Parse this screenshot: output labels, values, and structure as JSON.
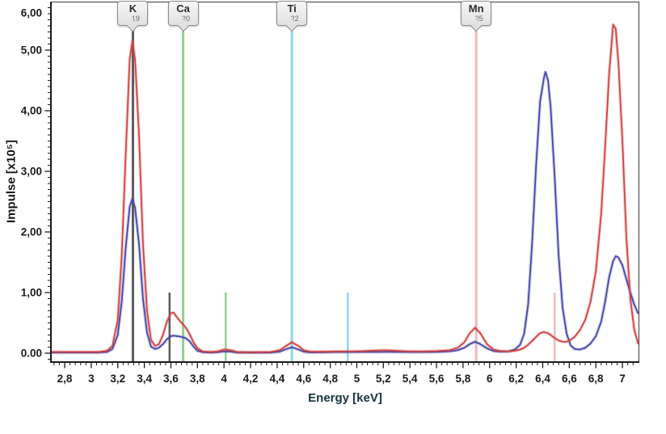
{
  "chart_data": {
    "type": "line",
    "title": "",
    "xlabel": "Energy [keV]",
    "ylabel": "Impulse [x10⁵]",
    "grid": false,
    "legend": "none",
    "x_visible_range": [
      2.7,
      7.12
    ],
    "y_visible_range": [
      0,
      5.8
    ],
    "x_tick_values": [
      2.8,
      3.0,
      3.2,
      3.4,
      3.6,
      3.8,
      4.0,
      4.2,
      4.4,
      4.6,
      4.8,
      5.0,
      5.2,
      5.4,
      5.6,
      5.8,
      6.0,
      6.2,
      6.4,
      6.6,
      6.8,
      7.0
    ],
    "x_tick_labels": [
      "2,8",
      "3",
      "3,2",
      "3,4",
      "3,6",
      "3,8",
      "4",
      "4,2",
      "4,4",
      "4,6",
      "4,8",
      "5",
      "5,2",
      "5,4",
      "5,6",
      "5,8",
      "6",
      "6,2",
      "6,4",
      "6,6",
      "6,8",
      "7"
    ],
    "x_minor_tick_step": 0.04,
    "y_tick_values": [
      0,
      1,
      2,
      3,
      4,
      5,
      6
    ],
    "y_tick_labels": [
      "0.00",
      "1,00",
      "2,00",
      "3,00",
      "4,00",
      "5,00",
      "6,00"
    ],
    "y_minor_tick_step": 0.1,
    "series_names": [
      "red spectrum",
      "blue spectrum"
    ],
    "points_format": [
      "energy_keV",
      "red_value_x1e5",
      "blue_value_x1e5"
    ],
    "points": [
      [
        2.7,
        0.02,
        0.01
      ],
      [
        2.9,
        0.02,
        0.01
      ],
      [
        3.05,
        0.02,
        0.01
      ],
      [
        3.12,
        0.04,
        0.02
      ],
      [
        3.16,
        0.12,
        0.07
      ],
      [
        3.2,
        0.55,
        0.3
      ],
      [
        3.23,
        1.6,
        0.85
      ],
      [
        3.26,
        3.3,
        1.75
      ],
      [
        3.29,
        4.85,
        2.42
      ],
      [
        3.31,
        5.15,
        2.55
      ],
      [
        3.33,
        4.85,
        2.4
      ],
      [
        3.36,
        3.6,
        1.8
      ],
      [
        3.39,
        1.8,
        0.9
      ],
      [
        3.42,
        0.7,
        0.34
      ],
      [
        3.45,
        0.22,
        0.11
      ],
      [
        3.48,
        0.12,
        0.07
      ],
      [
        3.51,
        0.15,
        0.09
      ],
      [
        3.54,
        0.3,
        0.15
      ],
      [
        3.57,
        0.52,
        0.23
      ],
      [
        3.6,
        0.66,
        0.28
      ],
      [
        3.62,
        0.67,
        0.29
      ],
      [
        3.65,
        0.58,
        0.28
      ],
      [
        3.68,
        0.5,
        0.27
      ],
      [
        3.71,
        0.43,
        0.25
      ],
      [
        3.74,
        0.32,
        0.2
      ],
      [
        3.77,
        0.18,
        0.11
      ],
      [
        3.8,
        0.08,
        0.04
      ],
      [
        3.84,
        0.03,
        0.015
      ],
      [
        3.9,
        0.02,
        0.01
      ],
      [
        3.95,
        0.03,
        0.015
      ],
      [
        4.0,
        0.06,
        0.03
      ],
      [
        4.05,
        0.05,
        0.025
      ],
      [
        4.1,
        0.02,
        0.01
      ],
      [
        4.2,
        0.015,
        0.008
      ],
      [
        4.35,
        0.02,
        0.01
      ],
      [
        4.42,
        0.05,
        0.025
      ],
      [
        4.46,
        0.11,
        0.06
      ],
      [
        4.51,
        0.18,
        0.1
      ],
      [
        4.56,
        0.12,
        0.06
      ],
      [
        4.6,
        0.05,
        0.025
      ],
      [
        4.65,
        0.025,
        0.012
      ],
      [
        4.75,
        0.025,
        0.015
      ],
      [
        4.85,
        0.03,
        0.018
      ],
      [
        4.95,
        0.03,
        0.018
      ],
      [
        5.05,
        0.035,
        0.02
      ],
      [
        5.15,
        0.045,
        0.02
      ],
      [
        5.22,
        0.05,
        0.022
      ],
      [
        5.3,
        0.04,
        0.02
      ],
      [
        5.4,
        0.03,
        0.018
      ],
      [
        5.5,
        0.03,
        0.018
      ],
      [
        5.6,
        0.035,
        0.02
      ],
      [
        5.7,
        0.05,
        0.03
      ],
      [
        5.76,
        0.09,
        0.05
      ],
      [
        5.81,
        0.18,
        0.09
      ],
      [
        5.85,
        0.33,
        0.15
      ],
      [
        5.89,
        0.42,
        0.19
      ],
      [
        5.93,
        0.33,
        0.15
      ],
      [
        5.98,
        0.15,
        0.08
      ],
      [
        6.03,
        0.06,
        0.035
      ],
      [
        6.08,
        0.035,
        0.025
      ],
      [
        6.14,
        0.03,
        0.03
      ],
      [
        6.19,
        0.04,
        0.06
      ],
      [
        6.23,
        0.06,
        0.14
      ],
      [
        6.26,
        0.09,
        0.32
      ],
      [
        6.29,
        0.14,
        0.8
      ],
      [
        6.32,
        0.2,
        1.8
      ],
      [
        6.35,
        0.27,
        3.1
      ],
      [
        6.38,
        0.33,
        4.15
      ],
      [
        6.41,
        0.35,
        4.55
      ],
      [
        6.42,
        0.34,
        4.64
      ],
      [
        6.44,
        0.33,
        4.5
      ],
      [
        6.46,
        0.3,
        4.05
      ],
      [
        6.49,
        0.25,
        2.9
      ],
      [
        6.52,
        0.21,
        1.6
      ],
      [
        6.55,
        0.19,
        0.75
      ],
      [
        6.58,
        0.19,
        0.32
      ],
      [
        6.61,
        0.22,
        0.13
      ],
      [
        6.64,
        0.27,
        0.07
      ],
      [
        6.68,
        0.38,
        0.06
      ],
      [
        6.72,
        0.55,
        0.09
      ],
      [
        6.76,
        0.85,
        0.16
      ],
      [
        6.8,
        1.35,
        0.28
      ],
      [
        6.84,
        2.3,
        0.52
      ],
      [
        6.87,
        3.4,
        0.85
      ],
      [
        6.9,
        4.6,
        1.25
      ],
      [
        6.93,
        5.42,
        1.52
      ],
      [
        6.95,
        5.35,
        1.6
      ],
      [
        6.97,
        4.8,
        1.58
      ],
      [
        7.0,
        3.5,
        1.45
      ],
      [
        7.03,
        1.9,
        1.22
      ],
      [
        7.06,
        0.9,
        1.0
      ],
      [
        7.09,
        0.38,
        0.8
      ],
      [
        7.12,
        0.15,
        0.65
      ]
    ],
    "element_markers": [
      {
        "symbol": "K",
        "atomic_number": "19",
        "color": "#5c5c5e",
        "kalpha_kev": 3.314,
        "kbeta_kev": 3.59,
        "kbeta_rel_height": 1.0
      },
      {
        "symbol": "Ca",
        "atomic_number": "20",
        "color": "#93d093",
        "kalpha_kev": 3.692,
        "kbeta_kev": 4.013,
        "kbeta_rel_height": 1.0
      },
      {
        "symbol": "Ti",
        "atomic_number": "22",
        "color": "#92d4f0",
        "kalpha_kev": 4.511,
        "kbeta_kev": 4.932,
        "kbeta_rel_height": 1.0
      },
      {
        "symbol": "Mn",
        "atomic_number": "25",
        "color": "#f0bbbd",
        "kalpha_kev": 5.899,
        "kbeta_kev": 6.49,
        "kbeta_rel_height": 1.0
      }
    ],
    "colors": {
      "red_series": "#cf4343",
      "blue_series": "#4444ab",
      "axis": "#1b1b1b",
      "x_title_color": "#16343c",
      "y_title_color": "#141414"
    }
  }
}
